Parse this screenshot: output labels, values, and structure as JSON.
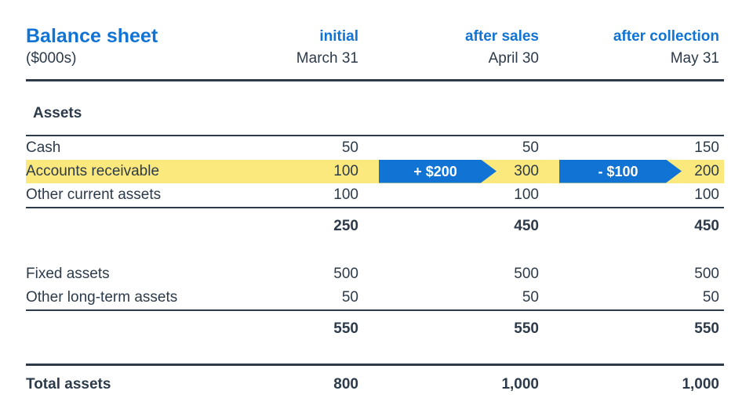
{
  "chart_data": {
    "type": "table",
    "title": "Balance sheet",
    "unit_note": "($000s)",
    "columns": [
      {
        "scenario": "initial",
        "date": "March 31"
      },
      {
        "scenario": "after sales",
        "date": "April 30"
      },
      {
        "scenario": "after collection",
        "date": "May 31"
      }
    ],
    "section_header": "Assets",
    "current_asset_rows": [
      {
        "label": "Cash",
        "values": [
          "50",
          "50",
          "150"
        ],
        "highlighted": false
      },
      {
        "label": "Accounts receivable",
        "values": [
          "100",
          "300",
          "200"
        ],
        "highlighted": true,
        "flow_arrows": [
          {
            "label": "+ $200"
          },
          {
            "label": "- $100"
          }
        ]
      },
      {
        "label": "Other current assets",
        "values": [
          "100",
          "100",
          "100"
        ],
        "highlighted": false
      }
    ],
    "current_assets_subtotal": {
      "values": [
        "250",
        "450",
        "450"
      ]
    },
    "long_term_rows": [
      {
        "label": "Fixed assets",
        "values": [
          "500",
          "500",
          "500"
        ]
      },
      {
        "label": "Other long-term assets",
        "values": [
          "50",
          "50",
          "50"
        ]
      }
    ],
    "long_term_subtotal": {
      "values": [
        "550",
        "550",
        "550"
      ]
    },
    "total_row": {
      "label": "Total assets",
      "values": [
        "800",
        "1,000",
        "1,000"
      ]
    },
    "colors": {
      "accent_blue": "#1173d4",
      "highlight_yellow": "#fce97e",
      "text_dark": "#2c3a4a"
    }
  }
}
